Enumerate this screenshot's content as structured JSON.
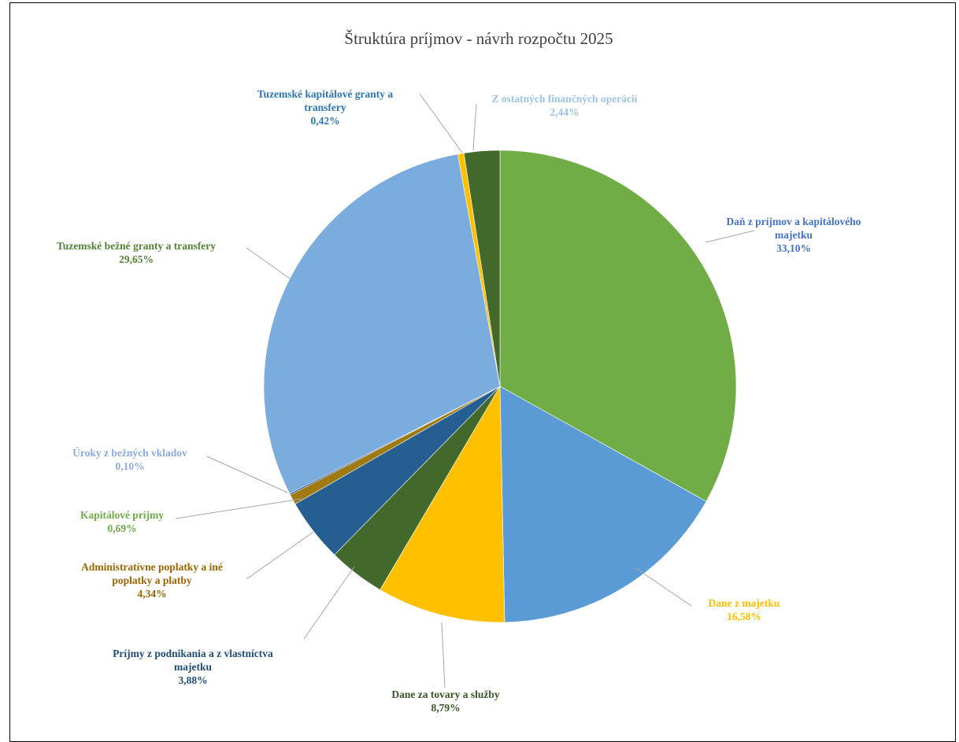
{
  "chart_data": {
    "type": "pie",
    "title": "Štruktúra príjmov - návrh rozpočtu 2025",
    "start_angle_deg": 0,
    "direction": "clockwise",
    "slices": [
      {
        "name": "Daň z príjmov a kapitálového majetku",
        "lines": [
          "Daň z príjmov a kapitálového",
          "majetku"
        ],
        "value": 33.1,
        "value_label": "33,10%",
        "color": "#70ad47",
        "label_color": "#4472c4"
      },
      {
        "name": "Dane z majetku",
        "lines": [
          "Dane z majetku"
        ],
        "value": 16.58,
        "value_label": "16,58%",
        "color": "#5b9bd5",
        "label_color": "#ffc000"
      },
      {
        "name": "Dane za tovary a služby",
        "lines": [
          "Dane za  tovary a  služby"
        ],
        "value": 8.79,
        "value_label": "8,79%",
        "color": "#ffc000",
        "label_color": "#375623"
      },
      {
        "name": "Príjmy z podnikania a z vlastníctva majetku",
        "lines": [
          "Príjmy z podnikania a z vlastníctva",
          "majetku"
        ],
        "value": 3.88,
        "value_label": "3,88%",
        "color": "#43682b",
        "label_color": "#1f4e79"
      },
      {
        "name": "Administratívne poplatky a iné poplatky a platby",
        "lines": [
          "Administratívne poplatky a iné",
          "poplatky a platby"
        ],
        "value": 4.34,
        "value_label": "4,34%",
        "color": "#255e91",
        "label_color": "#9c6500"
      },
      {
        "name": "Kapitálové príjmy",
        "lines": [
          "Kapitálové príjmy"
        ],
        "value": 0.69,
        "value_label": "0,69%",
        "color": "#9e7a10",
        "label_color": "#70ad47"
      },
      {
        "name": "Úroky z bežných vkladov",
        "lines": [
          "Úroky z bežných vkladov"
        ],
        "value": 0.1,
        "value_label": "0,10%",
        "color": "#264478",
        "label_color": "#8faadc"
      },
      {
        "name": "Tuzemské bežné granty a transfery",
        "lines": [
          "Tuzemské bežné  granty a transfery"
        ],
        "value": 29.65,
        "value_label": "29,65%",
        "color": "#7aacdd",
        "label_color": "#548235"
      },
      {
        "name": "Tuzemské kapitálové granty a transfery",
        "lines": [
          "Tuzemské kapitálové granty a",
          "transfery"
        ],
        "value": 0.42,
        "value_label": "0,42%",
        "color": "#ffc000",
        "label_color": "#2e75b6"
      },
      {
        "name": "Z ostatných finančných operácií",
        "lines": [
          "Z ostatných finančných operácií"
        ],
        "value": 2.44,
        "value_label": "2,44%",
        "color": "#43682b",
        "label_color": "#9dc3e6"
      }
    ],
    "legend": "none",
    "data_labels": "outside with leader lines"
  }
}
